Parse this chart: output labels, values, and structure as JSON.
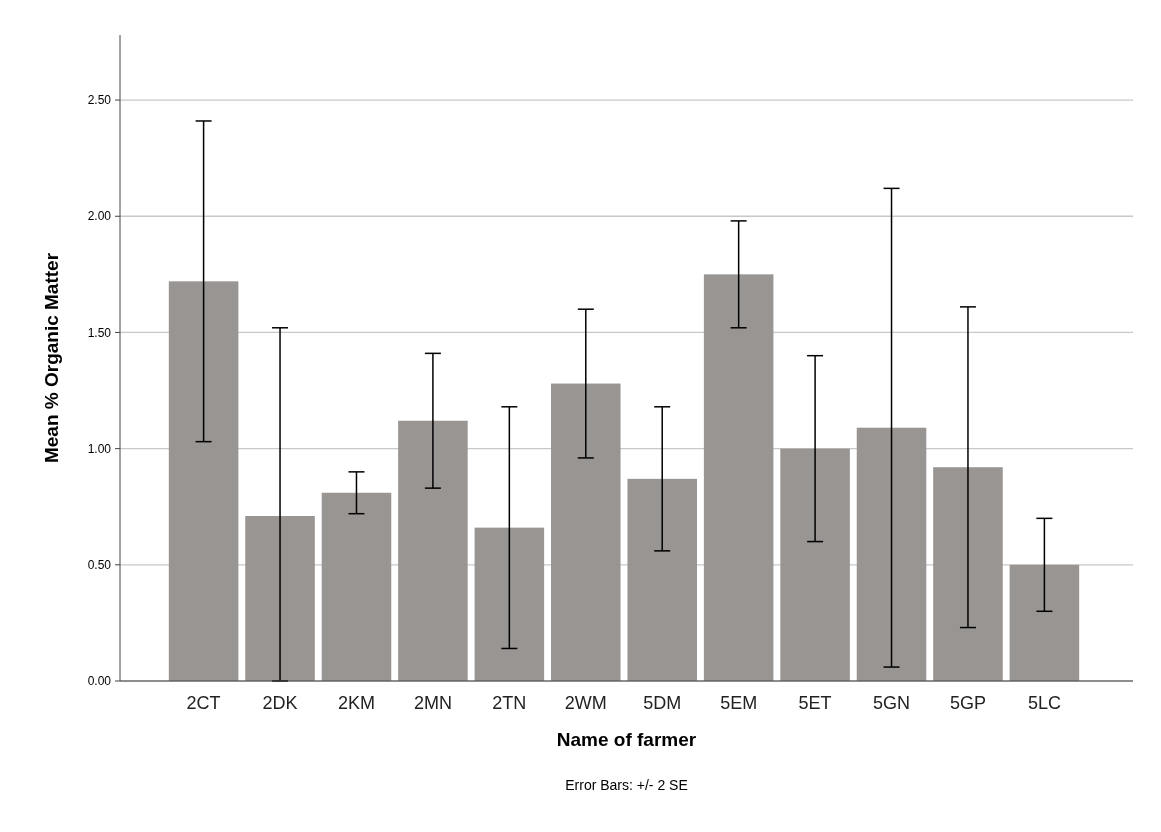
{
  "chart_data": {
    "type": "bar",
    "xlabel": "Name of farmer",
    "ylabel": "Mean % Organic Matter",
    "categories": [
      "2CT",
      "2DK",
      "2KM",
      "2MN",
      "2TN",
      "2WM",
      "5DM",
      "5EM",
      "5ET",
      "5GN",
      "5GP",
      "5LC"
    ],
    "values": [
      1.72,
      0.71,
      0.81,
      1.12,
      0.66,
      1.28,
      0.87,
      1.75,
      1.0,
      1.09,
      0.92,
      0.5
    ],
    "errors": [
      0.69,
      [
        0,
        1.52
      ],
      0.09,
      0.29,
      0.52,
      0.32,
      0.31,
      0.23,
      0.4,
      1.03,
      0.69,
      0.2
    ],
    "color": "#999593",
    "ylim": [
      0,
      2.78
    ],
    "yticks": [
      {
        "value": 0,
        "label": "0.00"
      },
      {
        "value": 0.5,
        "label": "0.50"
      },
      {
        "value": 1,
        "label": "1.00"
      },
      {
        "value": 1.5,
        "label": "1.50"
      },
      {
        "value": 2,
        "label": "2.00"
      },
      {
        "value": 2.5,
        "label": "2.50"
      }
    ],
    "grid": "y",
    "annotations": [
      "Error Bars: +/- 2 SE"
    ]
  }
}
